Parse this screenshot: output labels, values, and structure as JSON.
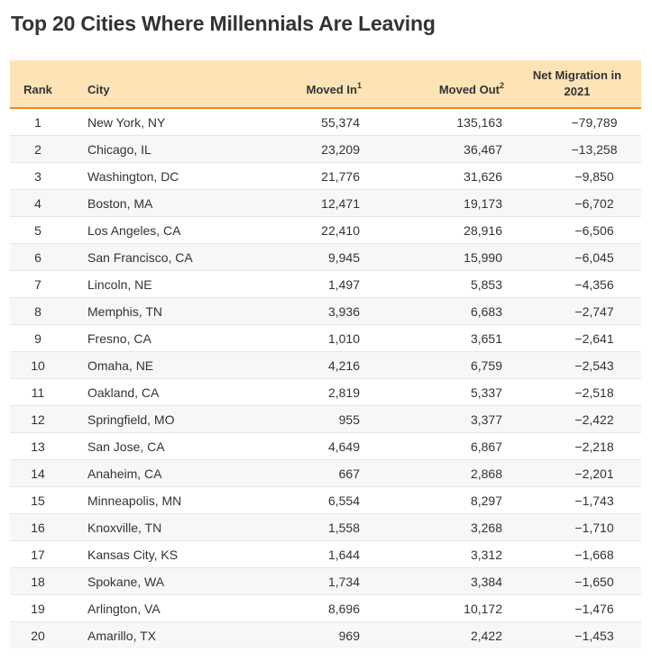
{
  "title": "Top 20 Cities Where Millennials Are Leaving",
  "colors": {
    "header_background": "#fde3b5",
    "header_border": "#e8842f",
    "stripe": "#f7f7f7"
  },
  "chart_data": {
    "type": "table",
    "title": "Top 20 Cities Where Millennials Are Leaving",
    "columns": [
      "Rank",
      "City",
      "Moved In",
      "Moved Out",
      "Net Migration in 2021"
    ],
    "header": {
      "rank": "Rank",
      "city": "City",
      "moved_in": "Moved In",
      "moved_in_note": "1",
      "moved_out": "Moved Out",
      "moved_out_note": "2",
      "net_line1": "Net Migration in",
      "net_line2": "2021"
    },
    "rows": [
      {
        "rank": "1",
        "city": "New York, NY",
        "moved_in": "55,374",
        "moved_out": "135,163",
        "net": "−79,789"
      },
      {
        "rank": "2",
        "city": "Chicago, IL",
        "moved_in": "23,209",
        "moved_out": "36,467",
        "net": "−13,258"
      },
      {
        "rank": "3",
        "city": "Washington, DC",
        "moved_in": "21,776",
        "moved_out": "31,626",
        "net": "−9,850"
      },
      {
        "rank": "4",
        "city": "Boston, MA",
        "moved_in": "12,471",
        "moved_out": "19,173",
        "net": "−6,702"
      },
      {
        "rank": "5",
        "city": "Los Angeles, CA",
        "moved_in": "22,410",
        "moved_out": "28,916",
        "net": "−6,506"
      },
      {
        "rank": "6",
        "city": "San Francisco, CA",
        "moved_in": "9,945",
        "moved_out": "15,990",
        "net": "−6,045"
      },
      {
        "rank": "7",
        "city": "Lincoln, NE",
        "moved_in": "1,497",
        "moved_out": "5,853",
        "net": "−4,356"
      },
      {
        "rank": "8",
        "city": "Memphis, TN",
        "moved_in": "3,936",
        "moved_out": "6,683",
        "net": "−2,747"
      },
      {
        "rank": "9",
        "city": "Fresno, CA",
        "moved_in": "1,010",
        "moved_out": "3,651",
        "net": "−2,641"
      },
      {
        "rank": "10",
        "city": "Omaha, NE",
        "moved_in": "4,216",
        "moved_out": "6,759",
        "net": "−2,543"
      },
      {
        "rank": "11",
        "city": "Oakland, CA",
        "moved_in": "2,819",
        "moved_out": "5,337",
        "net": "−2,518"
      },
      {
        "rank": "12",
        "city": "Springfield, MO",
        "moved_in": "955",
        "moved_out": "3,377",
        "net": "−2,422"
      },
      {
        "rank": "13",
        "city": "San Jose, CA",
        "moved_in": "4,649",
        "moved_out": "6,867",
        "net": "−2,218"
      },
      {
        "rank": "14",
        "city": "Anaheim, CA",
        "moved_in": "667",
        "moved_out": "2,868",
        "net": "−2,201"
      },
      {
        "rank": "15",
        "city": "Minneapolis, MN",
        "moved_in": "6,554",
        "moved_out": "8,297",
        "net": "−1,743"
      },
      {
        "rank": "16",
        "city": "Knoxville, TN",
        "moved_in": "1,558",
        "moved_out": "3,268",
        "net": "−1,710"
      },
      {
        "rank": "17",
        "city": "Kansas City, KS",
        "moved_in": "1,644",
        "moved_out": "3,312",
        "net": "−1,668"
      },
      {
        "rank": "18",
        "city": "Spokane, WA",
        "moved_in": "1,734",
        "moved_out": "3,384",
        "net": "−1,650"
      },
      {
        "rank": "19",
        "city": "Arlington, VA",
        "moved_in": "8,696",
        "moved_out": "10,172",
        "net": "−1,476"
      },
      {
        "rank": "20",
        "city": "Amarillo, TX",
        "moved_in": "969",
        "moved_out": "2,422",
        "net": "−1,453"
      }
    ]
  }
}
